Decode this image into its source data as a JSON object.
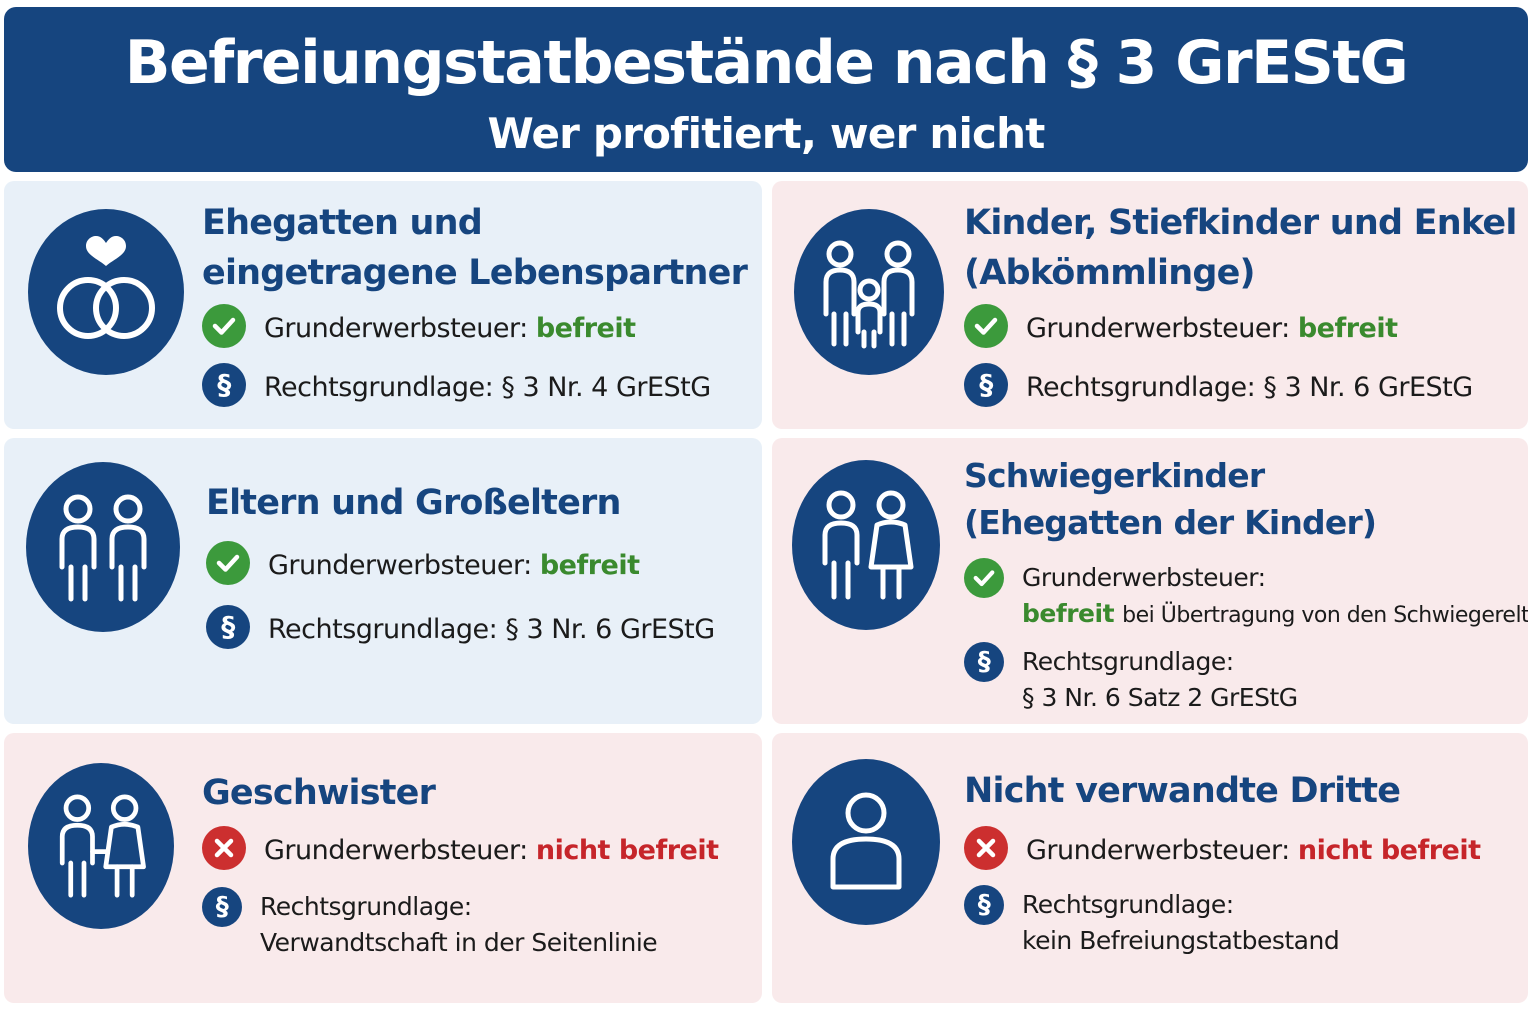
{
  "header": {
    "title": "Befreiungstatbestände nach § 3 GrEStG",
    "subtitle": "Wer profitiert, wer nicht"
  },
  "colors": {
    "primary": "#16457f",
    "befreit": "#3a8a2e",
    "nicht_befreit": "#c6252a",
    "card_blue": "#e8f0f8",
    "card_pink": "#f9eaeb"
  },
  "cards": [
    {
      "icon": "wedding-rings-heart-icon",
      "title_lines": [
        "Ehegatten und",
        "eingetragene Lebenspartner"
      ],
      "tax_label": "Grunderwerbsteuer:",
      "status": "befreit",
      "legal_label": "Rechtsgrundlage:",
      "legal_value": "§ 3 Nr. 4 GrEStG"
    },
    {
      "icon": "family-icon",
      "title_lines": [
        "Kinder, Stiefkinder und Enkel",
        "(Abkömmlinge)"
      ],
      "tax_label": "Grunderwerbsteuer:",
      "status": "befreit",
      "legal_label": "Rechtsgrundlage:",
      "legal_value": "§ 3 Nr. 6 GrEStG"
    },
    {
      "icon": "parents-icon",
      "title": "Eltern und Großeltern",
      "tax_label": "Grunderwerbsteuer:",
      "status": "befreit",
      "legal_label": "Rechtsgrundlage:",
      "legal_value": "§ 3 Nr. 6 GrEStG"
    },
    {
      "icon": "couple-icon",
      "title_lines": [
        "Schwiegerkinder",
        "(Ehegatten der Kinder)"
      ],
      "tax_label": "Grunderwerbsteuer:",
      "status": "befreit",
      "status_note": "bei Übertragung von den Schwiegereltern",
      "legal_label": "Rechtsgrundlage:",
      "legal_value": "§ 3 Nr. 6 Satz 2 GrEStG"
    },
    {
      "icon": "siblings-icon",
      "title": "Geschwister",
      "tax_label": "Grunderwerbsteuer:",
      "status": "nicht befreit",
      "legal_label": "Rechtsgrundlage:",
      "legal_value": "Verwandtschaft in der Seitenlinie"
    },
    {
      "icon": "person-icon",
      "title": "Nicht verwandte Dritte",
      "tax_label": "Grunderwerbsteuer:",
      "status": "nicht befreit",
      "legal_label": "Rechtsgrundlage:",
      "legal_value": "kein Befreiungstatbestand"
    }
  ],
  "badges": {
    "check": "check-icon",
    "cross": "cross-icon",
    "paragraph": "§"
  }
}
